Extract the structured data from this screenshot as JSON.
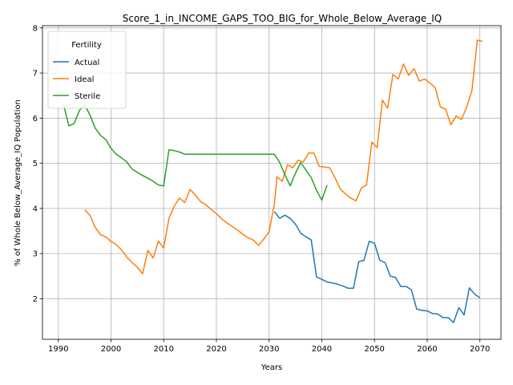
{
  "chart_data": {
    "type": "line",
    "title": "Score_1_in_INCOME_GAPS_TOO_BIG_for_Whole_Below_Average_IQ",
    "xlabel": "Years",
    "ylabel": "% of Whole Below_Average_IQ Population",
    "xlim": [
      1987,
      2074
    ],
    "ylim": [
      1.1,
      8.05
    ],
    "xticks": [
      1990,
      2000,
      2010,
      2020,
      2030,
      2040,
      2050,
      2060,
      2070
    ],
    "yticks": [
      2,
      3,
      4,
      5,
      6,
      7,
      8
    ],
    "grid": true,
    "legend": {
      "title": "Fertility",
      "placement": "top-left"
    },
    "series": [
      {
        "name": "Actual",
        "color": "#1f77b4",
        "points": [
          [
            2031,
            3.93
          ],
          [
            2032,
            3.78
          ],
          [
            2033,
            3.85
          ],
          [
            2034,
            3.78
          ],
          [
            2035,
            3.65
          ],
          [
            2036,
            3.45
          ],
          [
            2037,
            3.37
          ],
          [
            2038,
            3.3
          ],
          [
            2039,
            2.48
          ],
          [
            2040,
            2.43
          ],
          [
            2041,
            2.37
          ],
          [
            2042,
            2.35
          ],
          [
            2043,
            2.32
          ],
          [
            2044,
            2.28
          ],
          [
            2045,
            2.23
          ],
          [
            2046,
            2.23
          ],
          [
            2047,
            2.82
          ],
          [
            2048,
            2.85
          ],
          [
            2049,
            3.27
          ],
          [
            2050,
            3.23
          ],
          [
            2051,
            2.85
          ],
          [
            2052,
            2.8
          ],
          [
            2053,
            2.5
          ],
          [
            2054,
            2.47
          ],
          [
            2055,
            2.27
          ],
          [
            2056,
            2.27
          ],
          [
            2057,
            2.2
          ],
          [
            2058,
            1.77
          ],
          [
            2059,
            1.74
          ],
          [
            2060,
            1.73
          ],
          [
            2061,
            1.67
          ],
          [
            2062,
            1.66
          ],
          [
            2063,
            1.58
          ],
          [
            2064,
            1.58
          ],
          [
            2065,
            1.47
          ],
          [
            2066,
            1.8
          ],
          [
            2067,
            1.64
          ],
          [
            2068,
            2.24
          ],
          [
            2069,
            2.1
          ],
          [
            2070,
            2.02
          ]
        ]
      },
      {
        "name": "Ideal",
        "color": "#ff7f0e",
        "points": [
          [
            1995,
            3.97
          ],
          [
            1996,
            3.85
          ],
          [
            1997,
            3.58
          ],
          [
            1998,
            3.42
          ],
          [
            1999,
            3.37
          ],
          [
            2000,
            3.27
          ],
          [
            2001,
            3.2
          ],
          [
            2002,
            3.08
          ],
          [
            2003,
            2.92
          ],
          [
            2004,
            2.8
          ],
          [
            2005,
            2.7
          ],
          [
            2006,
            2.55
          ],
          [
            2007,
            3.07
          ],
          [
            2008,
            2.9
          ],
          [
            2009,
            3.28
          ],
          [
            2010,
            3.12
          ],
          [
            2011,
            3.78
          ],
          [
            2012,
            4.05
          ],
          [
            2013,
            4.23
          ],
          [
            2014,
            4.13
          ],
          [
            2015,
            4.42
          ],
          [
            2016,
            4.3
          ],
          [
            2017,
            4.15
          ],
          [
            2018,
            4.08
          ],
          [
            2019,
            3.98
          ],
          [
            2020,
            3.88
          ],
          [
            2021,
            3.77
          ],
          [
            2022,
            3.68
          ],
          [
            2023,
            3.6
          ],
          [
            2024,
            3.52
          ],
          [
            2025,
            3.43
          ],
          [
            2026,
            3.35
          ],
          [
            2027,
            3.3
          ],
          [
            2028,
            3.18
          ],
          [
            2029,
            3.32
          ],
          [
            2030,
            3.48
          ],
          [
            2031,
            4.1
          ],
          [
            2031.5,
            4.7
          ],
          [
            2032.5,
            4.6
          ],
          [
            2033.5,
            4.97
          ],
          [
            2034.5,
            4.9
          ],
          [
            2035.5,
            5.07
          ],
          [
            2036.5,
            5.03
          ],
          [
            2037.5,
            5.23
          ],
          [
            2038.5,
            5.23
          ],
          [
            2039.5,
            4.93
          ],
          [
            2040.5,
            4.92
          ],
          [
            2041.5,
            4.9
          ],
          [
            2042.5,
            4.68
          ],
          [
            2043.5,
            4.43
          ],
          [
            2044.5,
            4.32
          ],
          [
            2045.5,
            4.23
          ],
          [
            2046.5,
            4.17
          ],
          [
            2047.5,
            4.45
          ],
          [
            2048.5,
            4.52
          ],
          [
            2049.5,
            5.47
          ],
          [
            2050.5,
            5.35
          ],
          [
            2051.5,
            6.4
          ],
          [
            2052.5,
            6.22
          ],
          [
            2053.5,
            6.97
          ],
          [
            2054.5,
            6.87
          ],
          [
            2055.5,
            7.2
          ],
          [
            2056.5,
            6.95
          ],
          [
            2057.5,
            7.1
          ],
          [
            2058.5,
            6.82
          ],
          [
            2059.5,
            6.87
          ],
          [
            2060.5,
            6.78
          ],
          [
            2061.5,
            6.68
          ],
          [
            2062.5,
            6.25
          ],
          [
            2063.5,
            6.2
          ],
          [
            2064.5,
            5.85
          ],
          [
            2065.5,
            6.05
          ],
          [
            2066.5,
            5.97
          ],
          [
            2067.5,
            6.25
          ],
          [
            2068.5,
            6.62
          ],
          [
            2069.5,
            7.73
          ],
          [
            2070.5,
            7.7
          ]
        ]
      },
      {
        "name": "Sterile",
        "color": "#2ca02c",
        "points": [
          [
            1991,
            6.3
          ],
          [
            1992,
            5.83
          ],
          [
            1993,
            5.88
          ],
          [
            1994,
            6.17
          ],
          [
            1995,
            6.3
          ],
          [
            1996,
            6.07
          ],
          [
            1997,
            5.78
          ],
          [
            1998,
            5.62
          ],
          [
            1999,
            5.53
          ],
          [
            2000,
            5.33
          ],
          [
            2001,
            5.2
          ],
          [
            2002,
            5.12
          ],
          [
            2003,
            5.03
          ],
          [
            2004,
            4.87
          ],
          [
            2005,
            4.8
          ],
          [
            2006,
            4.73
          ],
          [
            2007,
            4.67
          ],
          [
            2008,
            4.6
          ],
          [
            2009,
            4.52
          ],
          [
            2010,
            4.5
          ],
          [
            2011,
            5.3
          ],
          [
            2012,
            5.28
          ],
          [
            2013,
            5.25
          ],
          [
            2014,
            5.2
          ],
          [
            2015,
            5.2
          ],
          [
            2016,
            5.2
          ],
          [
            2017,
            5.2
          ],
          [
            2018,
            5.2
          ],
          [
            2019,
            5.2
          ],
          [
            2020,
            5.2
          ],
          [
            2021,
            5.2
          ],
          [
            2022,
            5.2
          ],
          [
            2023,
            5.2
          ],
          [
            2024,
            5.2
          ],
          [
            2025,
            5.2
          ],
          [
            2026,
            5.2
          ],
          [
            2027,
            5.2
          ],
          [
            2028,
            5.2
          ],
          [
            2029,
            5.2
          ],
          [
            2030,
            5.2
          ],
          [
            2031,
            5.2
          ],
          [
            2032,
            5.02
          ],
          [
            2033,
            4.75
          ],
          [
            2034,
            4.5
          ],
          [
            2035,
            4.78
          ],
          [
            2036,
            5.02
          ],
          [
            2037,
            4.85
          ],
          [
            2038,
            4.68
          ],
          [
            2039,
            4.4
          ],
          [
            2040,
            4.18
          ],
          [
            2041,
            4.52
          ]
        ]
      }
    ]
  }
}
